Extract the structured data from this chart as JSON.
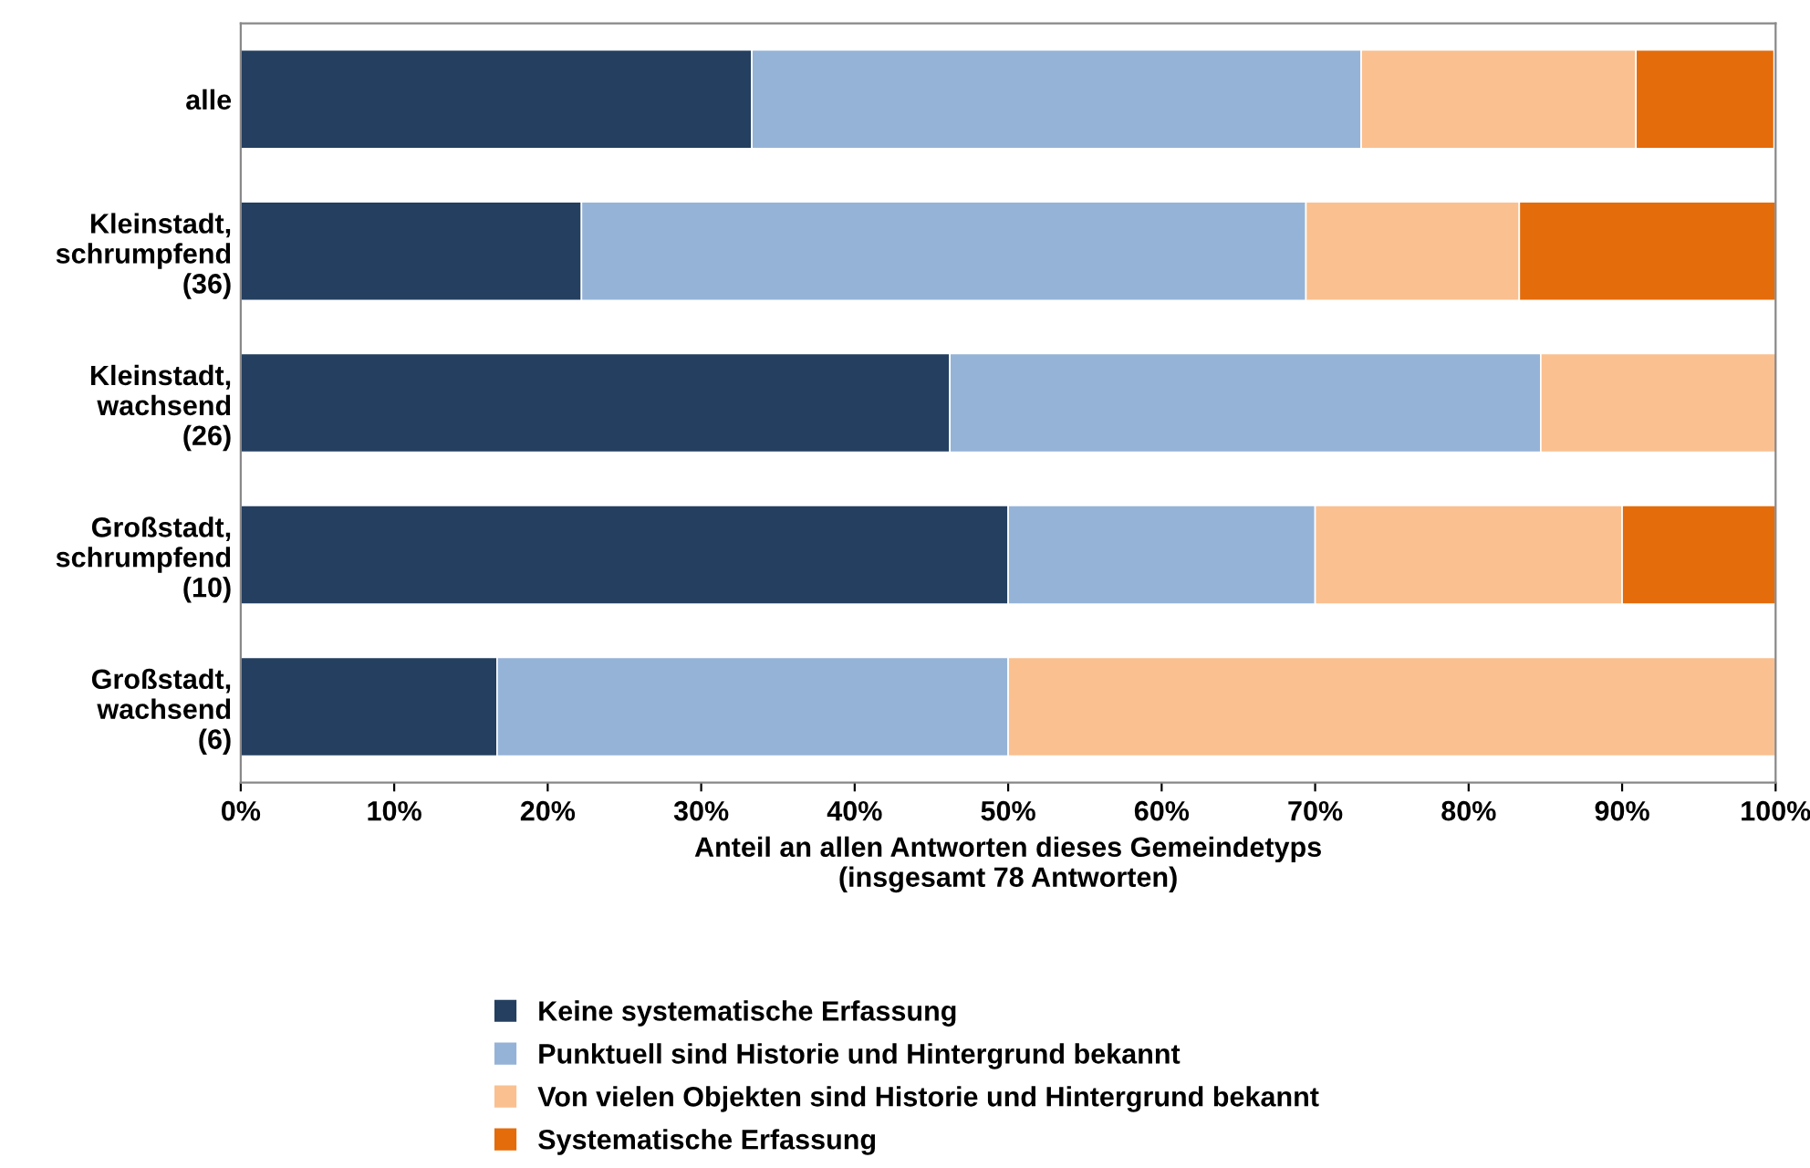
{
  "chart_data": {
    "type": "bar",
    "orientation": "horizontal",
    "stacked": true,
    "categories": [
      "alle",
      "Kleinstadt,\nschrumpfend\n(36)",
      "Kleinstadt,\nwachsend\n(26)",
      "Großstadt,\nschrumpfend\n(10)",
      "Großstadt,\nwachsend\n(6)"
    ],
    "series": [
      {
        "name": "Keine systematische Erfassung",
        "color": "#243f60",
        "values": [
          33.3,
          22.2,
          46.2,
          50,
          16.7
        ]
      },
      {
        "name": "Punktuell sind Historie und Hintergrund bekannt",
        "color": "#95b3d7",
        "values": [
          39.7,
          47.2,
          38.5,
          20,
          33.3
        ]
      },
      {
        "name": "Von vielen Objekten sind Historie und Hintergrund bekannt",
        "color": "#fac090",
        "values": [
          17.9,
          13.9,
          15.4,
          20,
          50
        ]
      },
      {
        "name": "Systematische Erfassung",
        "color": "#e46c0a",
        "values": [
          9.0,
          16.7,
          0,
          10,
          0
        ]
      }
    ],
    "xlabel": "Anteil an allen Antworten dieses Gemeindetyps\n(insgesamt 78 Antworten)",
    "xlim": [
      0,
      100
    ],
    "xticks": [
      {
        "value": 0,
        "label": "0%"
      },
      {
        "value": 10,
        "label": "10%"
      },
      {
        "value": 20,
        "label": "20%"
      },
      {
        "value": 30,
        "label": "30%"
      },
      {
        "value": 40,
        "label": "40%"
      },
      {
        "value": 50,
        "label": "50%"
      },
      {
        "value": 60,
        "label": "60%"
      },
      {
        "value": 70,
        "label": "70%"
      },
      {
        "value": 80,
        "label": "80%"
      },
      {
        "value": 90,
        "label": "90%"
      },
      {
        "value": 100,
        "label": "100%"
      }
    ],
    "legend": "bottom",
    "grid": false
  }
}
